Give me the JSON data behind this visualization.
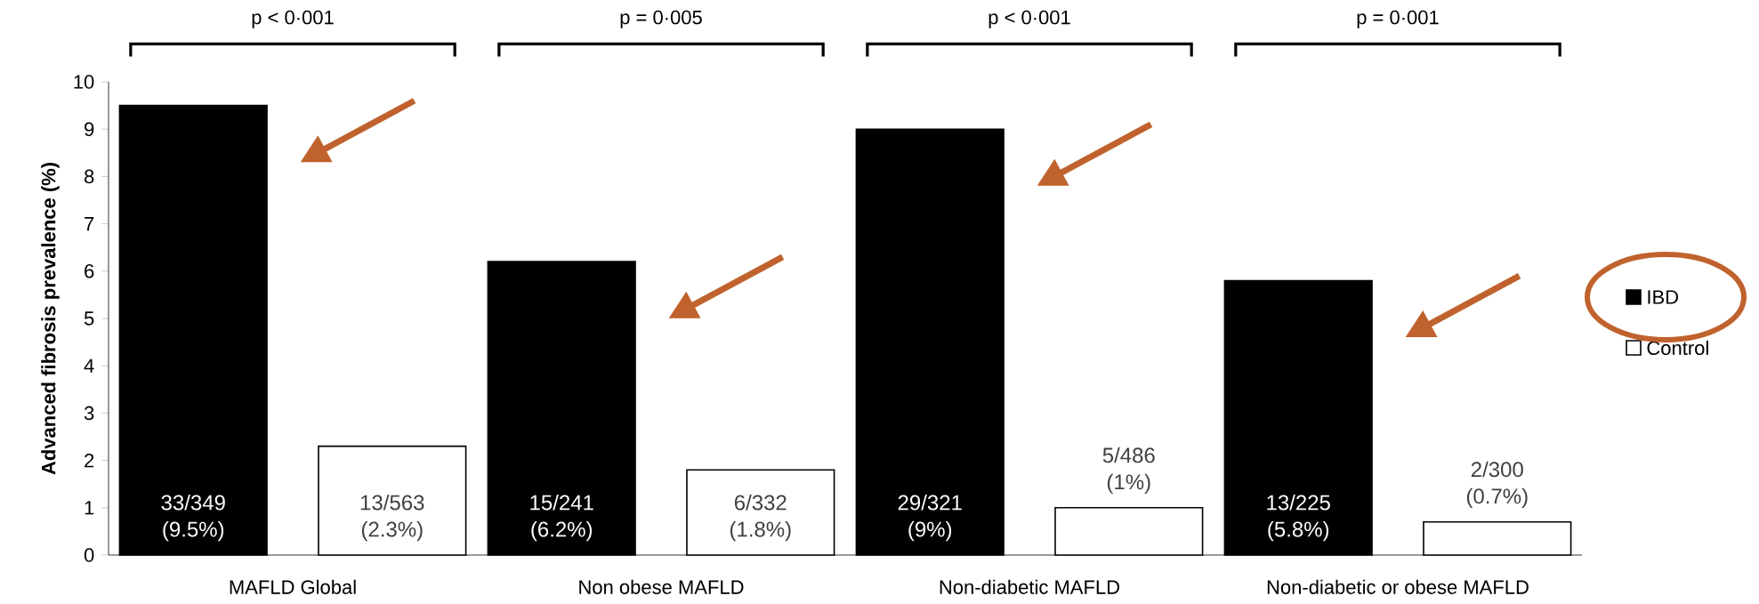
{
  "chart_data": {
    "type": "bar",
    "ylabel": "Advanced fibrosis prevalence (%)",
    "categories": [
      "MAFLD Global",
      "Non obese MAFLD",
      "Non-diabetic MAFLD",
      "Non-diabetic or obese MAFLD"
    ],
    "series": [
      {
        "name": "IBD",
        "color": "#000000",
        "values": [
          9.5,
          6.2,
          9,
          5.8
        ],
        "value_labels": [
          "33/349 (9.5%)",
          "15/241 (6.2%)",
          "29/321 (9%)",
          "13/225 (5.8%)"
        ]
      },
      {
        "name": "Control",
        "color": "#ffffff",
        "values": [
          2.3,
          1.8,
          1,
          0.7
        ],
        "value_labels": [
          "13/563 (2.3%)",
          "6/332 (1.8%)",
          "5/486 (1%)",
          "2/300 (0.7%)"
        ]
      }
    ],
    "ylim": [
      0,
      10
    ],
    "yticks": [
      0,
      1,
      2,
      3,
      4,
      5,
      6,
      7,
      8,
      9,
      10
    ],
    "grid": false,
    "legend": "right",
    "annotations": [
      "p < 0·001",
      "p = 0·005",
      "p < 0·001",
      "p = 0·001"
    ]
  }
}
